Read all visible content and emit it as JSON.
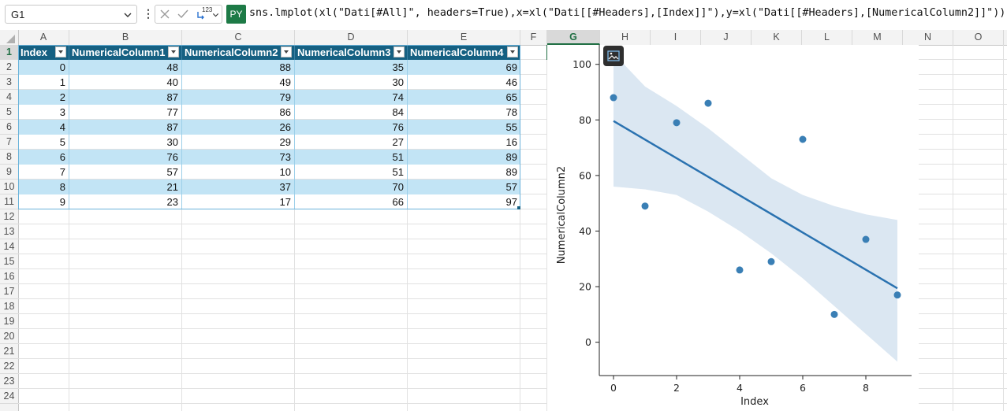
{
  "formula_bar": {
    "name_box": "G1",
    "mode_badge": "PY",
    "result_type_label": "123",
    "formula": "sns.lmplot(xl(\"Dati[#All]\", headers=True),x=xl(\"Dati[[#Headers],[Index]]\"),y=xl(\"Dati[[#Headers],[NumericalColumn2]]\"))"
  },
  "columns": [
    "A",
    "B",
    "C",
    "D",
    "E",
    "F",
    "G",
    "H",
    "I",
    "J",
    "K",
    "L",
    "M",
    "N",
    "O"
  ],
  "selected_column": "G",
  "rows": [
    "1",
    "2",
    "3",
    "4",
    "5",
    "6",
    "7",
    "8",
    "9",
    "10",
    "11",
    "12",
    "13",
    "14",
    "15",
    "16",
    "17",
    "18",
    "19",
    "20",
    "21",
    "22",
    "23",
    "24"
  ],
  "selected_row": "1",
  "table": {
    "name": "Dati",
    "headers": [
      "Index",
      "NumericalColumn1",
      "NumericalColumn2",
      "NumericalColumn3",
      "NumericalColumn4"
    ],
    "rows": [
      [
        "0",
        "48",
        "88",
        "35",
        "69"
      ],
      [
        "1",
        "40",
        "49",
        "30",
        "46"
      ],
      [
        "2",
        "87",
        "79",
        "74",
        "65"
      ],
      [
        "3",
        "77",
        "86",
        "84",
        "78"
      ],
      [
        "4",
        "87",
        "26",
        "76",
        "55"
      ],
      [
        "5",
        "30",
        "29",
        "27",
        "16"
      ],
      [
        "6",
        "76",
        "73",
        "51",
        "89"
      ],
      [
        "7",
        "57",
        "10",
        "51",
        "89"
      ],
      [
        "8",
        "21",
        "37",
        "70",
        "57"
      ],
      [
        "9",
        "23",
        "17",
        "66",
        "97"
      ]
    ]
  },
  "colors": {
    "header_fill": "#156082",
    "band_fill": "#c2e4f5",
    "point_color": "#3a7fb5",
    "line_color": "#2a72b0",
    "ci_fill": "#dbe7f2"
  },
  "chart_data": {
    "type": "scatter",
    "x": [
      0,
      1,
      2,
      3,
      4,
      5,
      6,
      7,
      8,
      9
    ],
    "y": [
      88,
      49,
      79,
      86,
      26,
      29,
      73,
      10,
      37,
      17
    ],
    "regression_line": {
      "x": [
        0,
        9
      ],
      "y": [
        79.6,
        19.4
      ]
    },
    "ci_upper": {
      "x": [
        0,
        1,
        2,
        3,
        4,
        5,
        6,
        7,
        8,
        9
      ],
      "y": [
        104,
        92,
        85,
        77,
        68,
        59,
        53,
        49,
        46,
        44
      ]
    },
    "ci_lower": {
      "x": [
        0,
        1,
        2,
        3,
        4,
        5,
        6,
        7,
        8,
        9
      ],
      "y": [
        56,
        55,
        53,
        47,
        40,
        32,
        23,
        13,
        3,
        -7
      ]
    },
    "xlabel": "Index",
    "ylabel": "NumericalColumn2",
    "xticks": [
      "0",
      "2",
      "4",
      "6",
      "8"
    ],
    "xtick_values": [
      0,
      2,
      4,
      6,
      8
    ],
    "yticks": [
      "0",
      "20",
      "40",
      "60",
      "80",
      "100"
    ],
    "ytick_values": [
      0,
      20,
      40,
      60,
      80,
      100
    ],
    "xlim": [
      -0.45,
      9.45
    ],
    "ylim": [
      -12,
      107
    ]
  }
}
